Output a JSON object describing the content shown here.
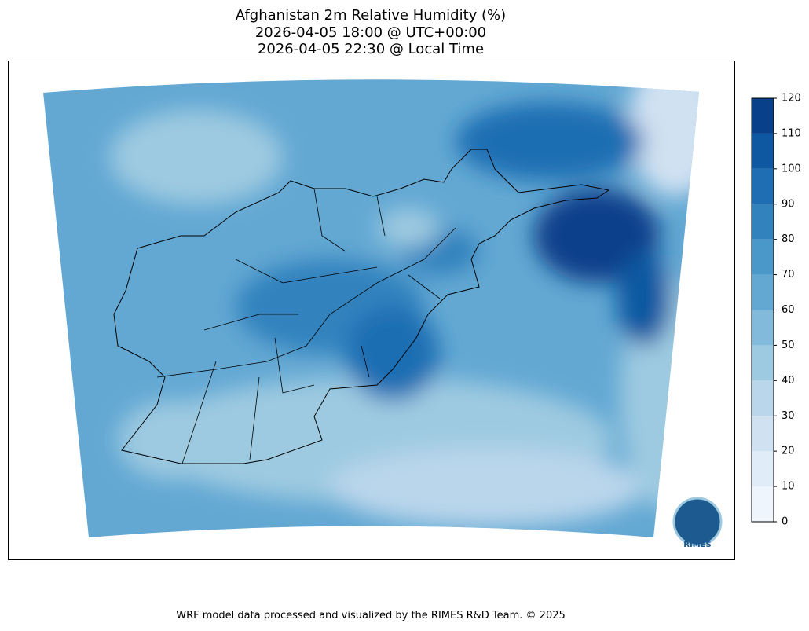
{
  "title": [
    "Afghanistan 2m Relative Humidity (%)",
    "2026-04-05 18:00 @ UTC+00:00",
    "2026-04-05 22:30 @ Local Time"
  ],
  "colorbar": {
    "lim": [
      0,
      120
    ],
    "ticks": [
      0,
      10,
      20,
      30,
      40,
      50,
      60,
      70,
      80,
      90,
      100,
      110,
      120
    ],
    "colors": [
      "#eef5fc",
      "#e0ecf8",
      "#d0e1f2",
      "#bad6eb",
      "#9ecae1",
      "#81badb",
      "#63a8d3",
      "#4a97c9",
      "#3282be",
      "#1f6eb3",
      "#0d58a1",
      "#08408a"
    ]
  },
  "logo": "RIMES",
  "footer": "WRF model data processed and visualized by the RIMES R&D Team. © 2025"
}
